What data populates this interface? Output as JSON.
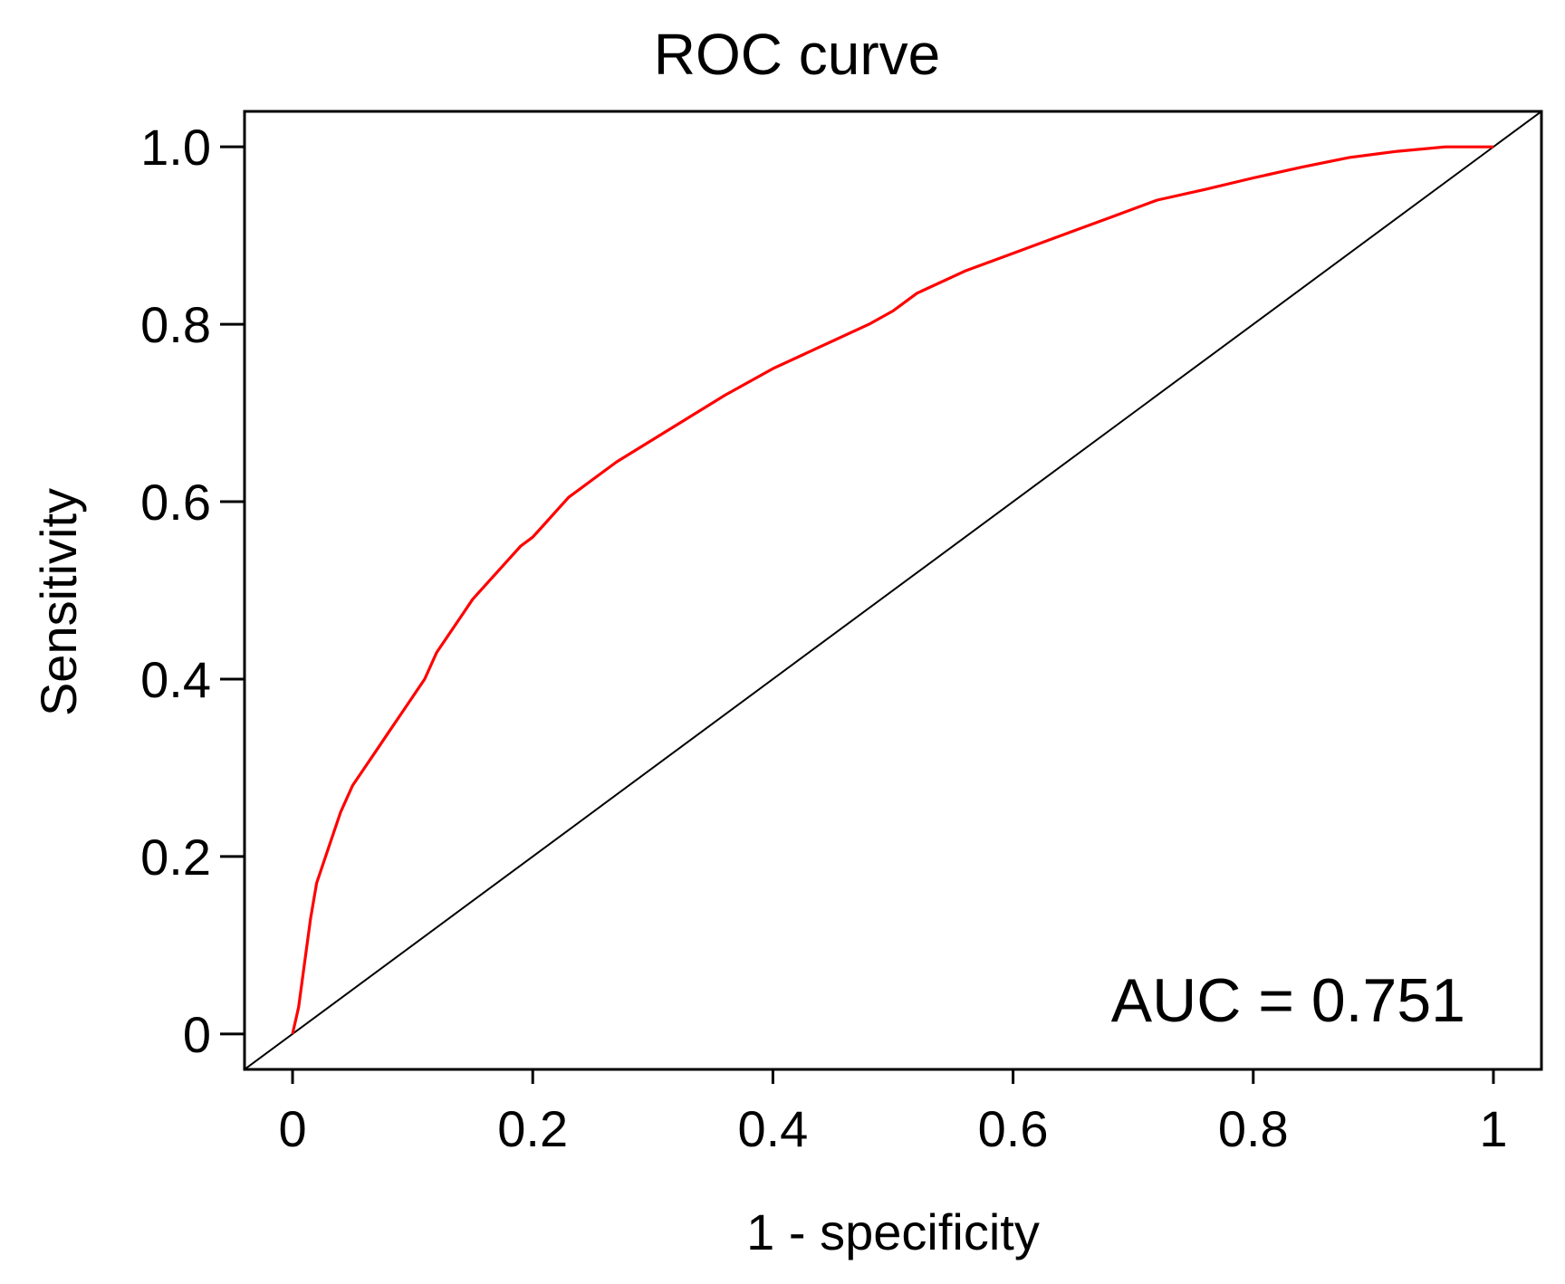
{
  "chart_data": {
    "type": "line",
    "title": "ROC curve",
    "xlabel": "1 - specificity",
    "ylabel": "Sensitivity",
    "xlim": [
      -0.04,
      1.04
    ],
    "ylim": [
      -0.04,
      1.04
    ],
    "x_ticks": [
      0,
      0.2,
      0.4,
      0.6,
      0.8,
      1
    ],
    "x_tick_labels": [
      "0",
      "0.2",
      "0.4",
      "0.6",
      "0.8",
      "1"
    ],
    "y_ticks": [
      0,
      0.2,
      0.4,
      0.6,
      0.8,
      1.0
    ],
    "y_tick_labels": [
      "0",
      "0.2",
      "0.4",
      "0.6",
      "0.8",
      "1.0"
    ],
    "annotation": "AUC = 0.751",
    "grid": false,
    "series": [
      {
        "name": "ROC",
        "color": "#ff0000",
        "x": [
          0,
          0.005,
          0.01,
          0.015,
          0.02,
          0.03,
          0.04,
          0.05,
          0.06,
          0.07,
          0.08,
          0.09,
          0.1,
          0.11,
          0.12,
          0.13,
          0.14,
          0.15,
          0.16,
          0.17,
          0.18,
          0.19,
          0.2,
          0.21,
          0.22,
          0.23,
          0.24,
          0.25,
          0.27,
          0.3,
          0.33,
          0.36,
          0.4,
          0.44,
          0.48,
          0.5,
          0.52,
          0.56,
          0.6,
          0.64,
          0.68,
          0.72,
          0.76,
          0.8,
          0.84,
          0.88,
          0.92,
          0.96,
          1.0
        ],
        "y": [
          0,
          0.03,
          0.08,
          0.13,
          0.17,
          0.21,
          0.25,
          0.28,
          0.3,
          0.32,
          0.34,
          0.36,
          0.38,
          0.4,
          0.43,
          0.45,
          0.47,
          0.49,
          0.505,
          0.52,
          0.535,
          0.55,
          0.56,
          0.575,
          0.59,
          0.605,
          0.615,
          0.625,
          0.645,
          0.67,
          0.695,
          0.72,
          0.75,
          0.775,
          0.8,
          0.815,
          0.835,
          0.86,
          0.88,
          0.9,
          0.92,
          0.94,
          0.952,
          0.965,
          0.977,
          0.988,
          0.995,
          1.0,
          1.0
        ]
      },
      {
        "name": "Reference",
        "color": "#000000",
        "x": [
          -0.04,
          1.04
        ],
        "y": [
          -0.04,
          1.04
        ]
      }
    ]
  }
}
